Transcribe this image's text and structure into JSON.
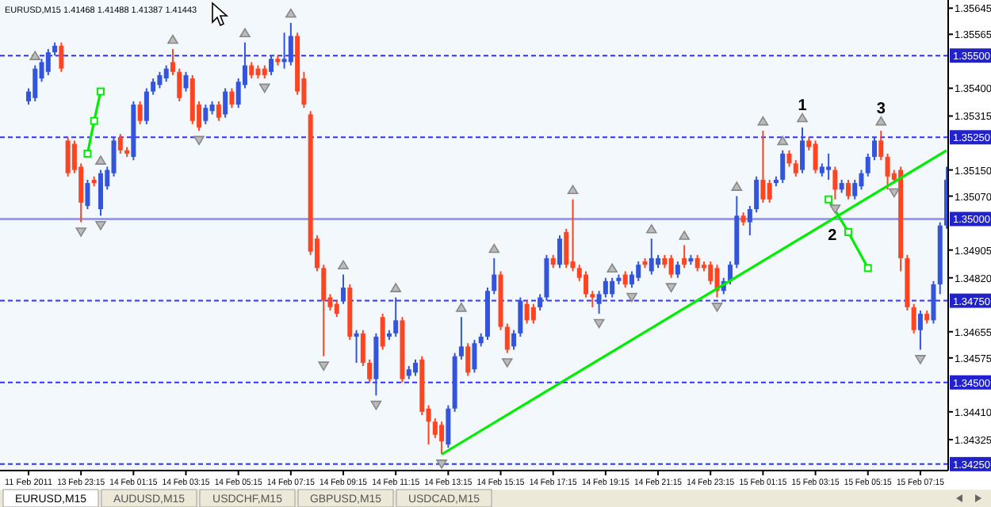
{
  "chart_data": {
    "type": "candlestick",
    "title": "EURUSD,M15 1.41468 1.41488 1.41387 1.41443",
    "categories": [
      "11 Feb 2011",
      null,
      null,
      null,
      null,
      null,
      null,
      null,
      "13 Feb 23:15",
      null,
      null,
      null,
      null,
      null,
      null,
      null,
      "14 Feb 01:15",
      null,
      null,
      null,
      null,
      null,
      null,
      null,
      "14 Feb 03:15",
      null,
      null,
      null,
      null,
      null,
      null,
      null,
      "14 Feb 05:15",
      null,
      null,
      null,
      null,
      null,
      null,
      null,
      "14 Feb 07:15",
      null,
      null,
      null,
      null,
      null,
      null,
      null,
      "14 Feb 09:15",
      null,
      null,
      null,
      null,
      null,
      null,
      null,
      "14 Feb 11:15",
      null,
      null,
      null,
      null,
      null,
      null,
      null,
      "14 Feb 13:15",
      null,
      null,
      null,
      null,
      null,
      null,
      null,
      "14 Feb 15:15",
      null,
      null,
      null,
      null,
      null,
      null,
      null,
      "14 Feb 17:15",
      null,
      null,
      null,
      null,
      null,
      null,
      null,
      "14 Feb 19:15",
      null,
      null,
      null,
      null,
      null,
      null,
      null,
      "14 Feb 21:15",
      null,
      null,
      null,
      null,
      null,
      null,
      null,
      "14 Feb 23:15",
      null,
      null,
      null,
      null,
      null,
      null,
      null,
      "15 Feb 01:15",
      null,
      null,
      null,
      null,
      null,
      null,
      null,
      "15 Feb 03:15",
      null,
      null,
      null,
      null,
      null,
      null,
      null,
      "15 Feb 05:15",
      null,
      null,
      null,
      null,
      null,
      null,
      null,
      "15 Feb 07:15",
      null,
      null,
      null,
      null
    ],
    "ohlc": [
      [
        1.3536,
        1.354,
        1.3535,
        1.3539
      ],
      [
        1.3537,
        1.3547,
        1.3536,
        1.3546
      ],
      [
        1.3543,
        1.3549,
        1.3542,
        1.3548
      ],
      [
        1.3545,
        1.3552,
        1.3544,
        1.3551
      ],
      [
        1.3551,
        1.3554,
        1.355,
        1.3553
      ],
      [
        1.3553,
        1.3554,
        1.3545,
        1.3546
      ],
      [
        1.3524,
        1.3525,
        1.3513,
        1.3514
      ],
      [
        1.3523,
        1.3524,
        1.3514,
        1.3515
      ],
      [
        1.3516,
        1.3517,
        1.3499,
        1.3505
      ],
      [
        1.3504,
        1.3512,
        1.3503,
        1.3511
      ],
      [
        1.3512,
        1.3513,
        1.351,
        1.3511
      ],
      [
        1.3503,
        1.3515,
        1.3501,
        1.3514
      ],
      [
        1.351,
        1.3516,
        1.3509,
        1.3515
      ],
      [
        1.3514,
        1.3525,
        1.3513,
        1.3524
      ],
      [
        1.3525,
        1.3526,
        1.352,
        1.3521
      ],
      [
        1.3521,
        1.3522,
        1.3519,
        1.352
      ],
      [
        1.3519,
        1.3536,
        1.3518,
        1.3535
      ],
      [
        1.3535,
        1.3536,
        1.3529,
        1.353
      ],
      [
        1.353,
        1.354,
        1.3529,
        1.3539
      ],
      [
        1.3539,
        1.3543,
        1.3538,
        1.3542
      ],
      [
        1.3541,
        1.3545,
        1.354,
        1.3544
      ],
      [
        1.3543,
        1.3547,
        1.3542,
        1.3546
      ],
      [
        1.3548,
        1.3552,
        1.3544,
        1.3545
      ],
      [
        1.3545,
        1.3546,
        1.3536,
        1.3537
      ],
      [
        1.354,
        1.3545,
        1.3539,
        1.3544
      ],
      [
        1.3543,
        1.3544,
        1.3529,
        1.353
      ],
      [
        1.3535,
        1.3536,
        1.3527,
        1.3528
      ],
      [
        1.353,
        1.3535,
        1.3529,
        1.3534
      ],
      [
        1.3533,
        1.3536,
        1.3532,
        1.3535
      ],
      [
        1.3535,
        1.3536,
        1.353,
        1.3531
      ],
      [
        1.3532,
        1.354,
        1.3531,
        1.3539
      ],
      [
        1.3539,
        1.354,
        1.3534,
        1.3535
      ],
      [
        1.3535,
        1.3543,
        1.3534,
        1.3542
      ],
      [
        1.3541,
        1.3554,
        1.354,
        1.3547
      ],
      [
        1.3547,
        1.3548,
        1.3543,
        1.3544
      ],
      [
        1.3546,
        1.3547,
        1.3543,
        1.3544
      ],
      [
        1.3546,
        1.3547,
        1.3543,
        1.3544
      ],
      [
        1.3545,
        1.355,
        1.3544,
        1.3549
      ],
      [
        1.3549,
        1.355,
        1.3547,
        1.3548
      ],
      [
        1.3548,
        1.3557,
        1.3546,
        1.3549
      ],
      [
        1.3548,
        1.356,
        1.3547,
        1.3556
      ],
      [
        1.3556,
        1.3557,
        1.3538,
        1.3539
      ],
      [
        1.3543,
        1.3545,
        1.3534,
        1.3535
      ],
      [
        1.3532,
        1.3533,
        1.3489,
        1.349
      ],
      [
        1.3494,
        1.3495,
        1.3484,
        1.3485
      ],
      [
        1.3485,
        1.3486,
        1.3458,
        1.3475
      ],
      [
        1.3476,
        1.3477,
        1.3472,
        1.3473
      ],
      [
        1.3474,
        1.3475,
        1.347,
        1.3471
      ],
      [
        1.3475,
        1.3483,
        1.3474,
        1.3479
      ],
      [
        1.3479,
        1.348,
        1.3463,
        1.3464
      ],
      [
        1.3464,
        1.3466,
        1.3456,
        1.3465
      ],
      [
        1.3465,
        1.3466,
        1.3455,
        1.3456
      ],
      [
        1.3456,
        1.3457,
        1.345,
        1.3451
      ],
      [
        1.3451,
        1.3465,
        1.3446,
        1.3464
      ],
      [
        1.347,
        1.3471,
        1.346,
        1.3461
      ],
      [
        1.3464,
        1.3466,
        1.3463,
        1.3465
      ],
      [
        1.3465,
        1.3476,
        1.3464,
        1.3469
      ],
      [
        1.3469,
        1.347,
        1.345,
        1.3451
      ],
      [
        1.3452,
        1.3455,
        1.3451,
        1.3454
      ],
      [
        1.3453,
        1.3457,
        1.3452,
        1.3456
      ],
      [
        1.3457,
        1.3458,
        1.344,
        1.3441
      ],
      [
        1.3442,
        1.3443,
        1.3431,
        1.3438
      ],
      [
        1.3438,
        1.3439,
        1.3433,
        1.3434
      ],
      [
        1.3437,
        1.3438,
        1.3428,
        1.3432
      ],
      [
        1.3431,
        1.3443,
        1.343,
        1.3442
      ],
      [
        1.3442,
        1.3459,
        1.3441,
        1.3458
      ],
      [
        1.3458,
        1.347,
        1.3457,
        1.3461
      ],
      [
        1.3461,
        1.3462,
        1.3452,
        1.3453
      ],
      [
        1.3454,
        1.3463,
        1.3453,
        1.3462
      ],
      [
        1.3462,
        1.3465,
        1.3461,
        1.3464
      ],
      [
        1.3464,
        1.3479,
        1.3463,
        1.3478
      ],
      [
        1.3478,
        1.3488,
        1.3477,
        1.3483
      ],
      [
        1.3483,
        1.3484,
        1.3466,
        1.3467
      ],
      [
        1.3467,
        1.3468,
        1.3459,
        1.346
      ],
      [
        1.3461,
        1.3466,
        1.346,
        1.3465
      ],
      [
        1.3465,
        1.3476,
        1.3464,
        1.3475
      ],
      [
        1.3474,
        1.3475,
        1.3468,
        1.3469
      ],
      [
        1.3473,
        1.3474,
        1.3468,
        1.3469
      ],
      [
        1.3473,
        1.3477,
        1.3472,
        1.3476
      ],
      [
        1.3476,
        1.3489,
        1.3475,
        1.3488
      ],
      [
        1.3488,
        1.3489,
        1.3485,
        1.3486
      ],
      [
        1.3486,
        1.3495,
        1.3485,
        1.3494
      ],
      [
        1.3496,
        1.3497,
        1.3485,
        1.3486
      ],
      [
        1.3487,
        1.3506,
        1.3484,
        1.3485
      ],
      [
        1.3485,
        1.3486,
        1.3481,
        1.3482
      ],
      [
        1.3483,
        1.3484,
        1.3476,
        1.3477
      ],
      [
        1.3477,
        1.3478,
        1.3473,
        1.3476
      ],
      [
        1.3474,
        1.3478,
        1.3471,
        1.3477
      ],
      [
        1.3477,
        1.3482,
        1.3476,
        1.3481
      ],
      [
        1.3477,
        1.3482,
        1.3476,
        1.3481
      ],
      [
        1.3481,
        1.3483,
        1.348,
        1.3482
      ],
      [
        1.3483,
        1.3484,
        1.3479,
        1.348
      ],
      [
        1.348,
        1.3484,
        1.3479,
        1.3483
      ],
      [
        1.3482,
        1.3487,
        1.3481,
        1.3486
      ],
      [
        1.3487,
        1.3488,
        1.3485,
        1.3486
      ],
      [
        1.3484,
        1.3494,
        1.3483,
        1.3488
      ],
      [
        1.3486,
        1.3489,
        1.3485,
        1.3488
      ],
      [
        1.3488,
        1.3489,
        1.3485,
        1.3486
      ],
      [
        1.3488,
        1.3489,
        1.3482,
        1.3483
      ],
      [
        1.3483,
        1.3487,
        1.3482,
        1.3486
      ],
      [
        1.3488,
        1.3492,
        1.3485,
        1.3486
      ],
      [
        1.3487,
        1.3489,
        1.3486,
        1.3488
      ],
      [
        1.3488,
        1.3489,
        1.3484,
        1.3485
      ],
      [
        1.3486,
        1.3487,
        1.3484,
        1.3485
      ],
      [
        1.3486,
        1.3487,
        1.348,
        1.3481
      ],
      [
        1.3485,
        1.3486,
        1.3476,
        1.3478
      ],
      [
        1.3478,
        1.3482,
        1.3477,
        1.3481
      ],
      [
        1.3481,
        1.3487,
        1.348,
        1.3486
      ],
      [
        1.3486,
        1.3507,
        1.3485,
        1.3501
      ],
      [
        1.3501,
        1.3502,
        1.3498,
        1.3499
      ],
      [
        1.3499,
        1.3504,
        1.3495,
        1.3503
      ],
      [
        1.3503,
        1.3513,
        1.3502,
        1.3512
      ],
      [
        1.3512,
        1.3527,
        1.3505,
        1.3506
      ],
      [
        1.3511,
        1.3512,
        1.3505,
        1.3506
      ],
      [
        1.3511,
        1.3513,
        1.351,
        1.3512
      ],
      [
        1.3512,
        1.3521,
        1.3511,
        1.352
      ],
      [
        1.352,
        1.3521,
        1.3516,
        1.3517
      ],
      [
        1.3517,
        1.3518,
        1.3513,
        1.3514
      ],
      [
        1.3515,
        1.3528,
        1.3514,
        1.3524
      ],
      [
        1.3524,
        1.3525,
        1.3521,
        1.3522
      ],
      [
        1.3523,
        1.3524,
        1.3514,
        1.3515
      ],
      [
        1.3514,
        1.3517,
        1.3513,
        1.3516
      ],
      [
        1.3515,
        1.352,
        1.3512,
        1.3516
      ],
      [
        1.3515,
        1.3516,
        1.3506,
        1.3509
      ],
      [
        1.3509,
        1.3512,
        1.3508,
        1.3511
      ],
      [
        1.3511,
        1.3512,
        1.3506,
        1.3507
      ],
      [
        1.3507,
        1.3512,
        1.3506,
        1.3511
      ],
      [
        1.351,
        1.3515,
        1.3509,
        1.3514
      ],
      [
        1.3514,
        1.352,
        1.3513,
        1.3519
      ],
      [
        1.3519,
        1.3525,
        1.3518,
        1.3524
      ],
      [
        1.3524,
        1.3527,
        1.3518,
        1.3519
      ],
      [
        1.3519,
        1.352,
        1.3509,
        1.3513
      ],
      [
        1.3514,
        1.3515,
        1.3511,
        1.3512
      ],
      [
        1.3515,
        1.3516,
        1.3484,
        1.3488
      ],
      [
        1.3488,
        1.3489,
        1.3472,
        1.3473
      ],
      [
        1.3473,
        1.3474,
        1.3465,
        1.3466
      ],
      [
        1.3466,
        1.3472,
        1.346,
        1.3471
      ],
      [
        1.3471,
        1.3472,
        1.3468,
        1.3469
      ],
      [
        1.3469,
        1.3481,
        1.3468,
        1.348
      ],
      [
        1.348,
        1.3499,
        1.3477,
        1.3498
      ],
      [
        1.3498,
        1.3516,
        1.3497,
        1.3512
      ]
    ],
    "colors": [
      "#3355dd",
      "#3355dd",
      "#3355dd",
      "#3355dd",
      "#3355dd",
      "#ff4422",
      "#ff4422",
      "#ff4422",
      "#ff4422",
      "#3355dd",
      "#ff4422",
      "#3355dd",
      "#3355dd",
      "#3355dd",
      "#ff4422",
      "#ff4422",
      "#3355dd",
      "#ff4422",
      "#3355dd",
      "#3355dd",
      "#3355dd",
      "#3355dd",
      "#ff4422",
      "#ff4422",
      "#3355dd",
      "#ff4422",
      "#ff4422",
      "#3355dd",
      "#3355dd",
      "#ff4422",
      "#3355dd",
      "#ff4422",
      "#3355dd",
      "#3355dd",
      "#ff4422",
      "#ff4422",
      "#ff4422",
      "#3355dd",
      "#ff4422",
      "#3355dd",
      "#3355dd",
      "#ff4422",
      "#ff4422",
      "#ff4422",
      "#ff4422",
      "#ff4422",
      "#ff4422",
      "#ff4422",
      "#3355dd",
      "#ff4422",
      "#3355dd",
      "#ff4422",
      "#ff4422",
      "#3355dd",
      "#ff4422",
      "#3355dd",
      "#3355dd",
      "#ff4422",
      "#3355dd",
      "#3355dd",
      "#ff4422",
      "#ff4422",
      "#ff4422",
      "#ff4422",
      "#3355dd",
      "#3355dd",
      "#3355dd",
      "#ff4422",
      "#3355dd",
      "#3355dd",
      "#3355dd",
      "#3355dd",
      "#ff4422",
      "#ff4422",
      "#3355dd",
      "#3355dd",
      "#ff4422",
      "#ff4422",
      "#3355dd",
      "#3355dd",
      "#ff4422",
      "#3355dd",
      "#ff4422",
      "#ff4422",
      "#ff4422",
      "#ff4422",
      "#ff4422",
      "#3355dd",
      "#3355dd",
      "#3355dd",
      "#3355dd",
      "#ff4422",
      "#3355dd",
      "#3355dd",
      "#ff4422",
      "#3355dd",
      "#3355dd",
      "#ff4422",
      "#ff4422",
      "#3355dd",
      "#ff4422",
      "#3355dd",
      "#ff4422",
      "#ff4422",
      "#ff4422",
      "#ff4422",
      "#3355dd",
      "#3355dd",
      "#3355dd",
      "#ff4422",
      "#3355dd",
      "#3355dd",
      "#ff4422",
      "#ff4422",
      "#3355dd",
      "#3355dd",
      "#ff4422",
      "#ff4422",
      "#3355dd",
      "#ff4422",
      "#ff4422",
      "#3355dd",
      "#3355dd",
      "#ff4422",
      "#3355dd",
      "#ff4422",
      "#3355dd",
      "#3355dd",
      "#3355dd",
      "#3355dd",
      "#ff4422",
      "#ff4422",
      "#ff4422",
      "#ff4422",
      "#ff4422",
      "#ff4422",
      "#3355dd",
      "#ff4422",
      "#3355dd",
      "#3355dd",
      "#3355dd"
    ],
    "value_labels": [
      null,
      null,
      null,
      null,
      null,
      null,
      null,
      null,
      null,
      null,
      null,
      null,
      null,
      null,
      null,
      null,
      null,
      null,
      null,
      null,
      null,
      null,
      null,
      null,
      null,
      null,
      null,
      null,
      null,
      null,
      null,
      null,
      null,
      null,
      null,
      null,
      null,
      null,
      null,
      null,
      null,
      null,
      null,
      null,
      null,
      null,
      null,
      null,
      null,
      null,
      null,
      null,
      null,
      null,
      null,
      null,
      null,
      null,
      null,
      null,
      null,
      null,
      null,
      null,
      null,
      null,
      null,
      null,
      null,
      null,
      null,
      null,
      null,
      null,
      null,
      null,
      null,
      null,
      null,
      null,
      null,
      null,
      null,
      null,
      null,
      null,
      null,
      null,
      null,
      null,
      null,
      null,
      null,
      null,
      null,
      null,
      null,
      null,
      null,
      null,
      null,
      null,
      null,
      null,
      null,
      null,
      null,
      null,
      null,
      null,
      null,
      null,
      null,
      null,
      null,
      null,
      null,
      null,
      "1",
      null,
      null,
      null,
      null,
      null,
      null,
      null,
      null,
      null,
      null,
      null,
      "3",
      null,
      null,
      null,
      null,
      null,
      null,
      null,
      null,
      null,
      null
    ],
    "ylim": [
      1.3424,
      1.3567
    ],
    "yticks": [
      {
        "value": 1.35645,
        "label": "1.35645"
      },
      {
        "value": 1.35565,
        "label": "1.35565"
      },
      {
        "value": 1.354,
        "label": "1.35400"
      },
      {
        "value": 1.35315,
        "label": "1.35315"
      },
      {
        "value": 1.3515,
        "label": "1.35150"
      },
      {
        "value": 1.3507,
        "label": "1.35070"
      },
      {
        "value": 1.34905,
        "label": "1.34905"
      },
      {
        "value": 1.3482,
        "label": "1.34820"
      },
      {
        "value": 1.34655,
        "label": "1.34655"
      },
      {
        "value": 1.34575,
        "label": "1.34575"
      },
      {
        "value": 1.3441,
        "label": "1.34410"
      },
      {
        "value": 1.34325,
        "label": "1.34325"
      }
    ],
    "ref_lines": [
      {
        "axis": "y",
        "value": 1.355,
        "label": "1.35500",
        "color": "#3333ff",
        "line_style": "dashed"
      },
      {
        "axis": "y",
        "value": 1.3525,
        "label": "1.35250",
        "color": "#3333ff",
        "line_style": "dashed"
      },
      {
        "axis": "y",
        "value": 1.35,
        "label": "1.35000",
        "color": "#9999ff",
        "line_style": "solid"
      },
      {
        "axis": "y",
        "value": 1.3475,
        "label": "1.34750",
        "color": "#3333ff",
        "line_style": "dashed"
      },
      {
        "axis": "y",
        "value": 1.345,
        "label": "1.34500",
        "color": "#3333ff",
        "line_style": "dashed"
      },
      {
        "axis": "y",
        "value": 1.3425,
        "label": "1.34250",
        "color": "#3333ff",
        "line_style": "dashed"
      }
    ],
    "series": [
      {
        "type": "line",
        "color": "#00ee00",
        "marker": "none",
        "values": [
          null,
          null,
          null,
          null,
          null,
          null,
          null,
          null,
          null,
          null,
          null,
          null,
          null,
          null,
          null,
          null,
          null,
          null,
          null,
          null,
          null,
          null,
          null,
          null,
          null,
          null,
          null,
          null,
          null,
          null,
          null,
          null,
          null,
          null,
          null,
          null,
          null,
          null,
          null,
          null,
          null,
          null,
          null,
          null,
          null,
          null,
          null,
          null,
          null,
          null,
          null,
          null,
          null,
          null,
          null,
          null,
          null,
          null,
          null,
          null,
          null,
          null,
          null,
          1.3428,
          null,
          null,
          null,
          null,
          null,
          null,
          null,
          null,
          null,
          null,
          null,
          null,
          null,
          null,
          null,
          null,
          null,
          null,
          null,
          null,
          null,
          null,
          null,
          null,
          null,
          null,
          null,
          null,
          null,
          null,
          null,
          null,
          null,
          null,
          null,
          null,
          null,
          null,
          null,
          null,
          null,
          null,
          null,
          null,
          null,
          null,
          null,
          null,
          null,
          null,
          null,
          null,
          null,
          null,
          null,
          null,
          null,
          null,
          null,
          null,
          null,
          null,
          null,
          null,
          null,
          null,
          null,
          null,
          null,
          null,
          null,
          null,
          null,
          null,
          null,
          null,
          1.3521
        ]
      },
      {
        "type": "line",
        "color": "#00ee00",
        "marker": "square",
        "values": [
          null,
          null,
          null,
          null,
          null,
          null,
          null,
          null,
          null,
          1.352,
          1.353,
          1.3539,
          null,
          null,
          null,
          null,
          null,
          null,
          null,
          null,
          null,
          null,
          null,
          null,
          null,
          null,
          null,
          null,
          null,
          null,
          null,
          null,
          null,
          null,
          null,
          null,
          null,
          null,
          null,
          null,
          null,
          null,
          null,
          null,
          null,
          null,
          null,
          null,
          null,
          null,
          null,
          null,
          null,
          null,
          null,
          null,
          null,
          null,
          null,
          null,
          null,
          null,
          null,
          null,
          null,
          null,
          null,
          null,
          null,
          null,
          null,
          null,
          null,
          null,
          null,
          null,
          null,
          null,
          null,
          null,
          null,
          null,
          null,
          null,
          null,
          null,
          null,
          null,
          null,
          null,
          null,
          null,
          null,
          null,
          null,
          null,
          null,
          null,
          null,
          null,
          null,
          null,
          null,
          null,
          null,
          null,
          null,
          null,
          null,
          null,
          null,
          null,
          null,
          null,
          null,
          null,
          null,
          null,
          null,
          null,
          null,
          null,
          null,
          null,
          null,
          null,
          null,
          null,
          null,
          null,
          null,
          null,
          null,
          null,
          null,
          null,
          null,
          null,
          null,
          null,
          null
        ]
      },
      {
        "type": "line",
        "color": "#00ee00",
        "marker": "square",
        "values": [
          null,
          null,
          null,
          null,
          null,
          null,
          null,
          null,
          null,
          null,
          null,
          null,
          null,
          null,
          null,
          null,
          null,
          null,
          null,
          null,
          null,
          null,
          null,
          null,
          null,
          null,
          null,
          null,
          null,
          null,
          null,
          null,
          null,
          null,
          null,
          null,
          null,
          null,
          null,
          null,
          null,
          null,
          null,
          null,
          null,
          null,
          null,
          null,
          null,
          null,
          null,
          null,
          null,
          null,
          null,
          null,
          null,
          null,
          null,
          null,
          null,
          null,
          null,
          null,
          null,
          null,
          null,
          null,
          null,
          null,
          null,
          null,
          null,
          null,
          null,
          null,
          null,
          null,
          null,
          null,
          null,
          null,
          null,
          null,
          null,
          null,
          null,
          null,
          null,
          null,
          null,
          null,
          null,
          null,
          null,
          null,
          null,
          null,
          null,
          null,
          null,
          null,
          null,
          null,
          null,
          null,
          null,
          null,
          null,
          null,
          null,
          null,
          null,
          null,
          null,
          null,
          null,
          null,
          null,
          null,
          null,
          null,
          1.3506,
          null,
          null,
          1.3496,
          null,
          null,
          1.3485,
          null,
          null,
          null,
          null,
          null,
          null,
          null,
          null,
          null,
          null,
          null,
          null
        ]
      },
      {
        "type": "scatter",
        "color": "#888888",
        "marker": "triangle",
        "values": [
          null,
          1.355,
          null,
          null,
          null,
          null,
          null,
          null,
          null,
          null,
          null,
          1.3518,
          null,
          null,
          null,
          null,
          null,
          null,
          null,
          null,
          null,
          null,
          1.3555,
          null,
          null,
          null,
          null,
          null,
          null,
          null,
          null,
          null,
          null,
          1.3557,
          null,
          null,
          null,
          null,
          null,
          null,
          1.3563,
          null,
          null,
          null,
          null,
          null,
          null,
          null,
          1.3486,
          null,
          null,
          null,
          null,
          null,
          null,
          null,
          1.3479,
          null,
          null,
          null,
          null,
          null,
          null,
          null,
          null,
          null,
          1.3473,
          null,
          null,
          null,
          null,
          1.3491,
          null,
          null,
          null,
          null,
          null,
          null,
          null,
          null,
          null,
          null,
          null,
          1.3509,
          null,
          null,
          null,
          null,
          null,
          1.3485,
          null,
          null,
          null,
          null,
          null,
          1.3497,
          null,
          null,
          null,
          null,
          1.3495,
          null,
          null,
          null,
          null,
          null,
          null,
          null,
          1.351,
          null,
          null,
          null,
          1.353,
          null,
          null,
          1.3524,
          null,
          null,
          1.3531,
          null,
          null,
          null,
          null,
          null,
          null,
          null,
          null,
          null,
          null,
          null,
          1.353,
          null,
          null,
          null,
          null,
          null,
          null,
          null,
          null,
          null,
          null
        ]
      },
      {
        "type": "scatter",
        "color": "#888888",
        "marker": "triangle",
        "values": [
          null,
          null,
          null,
          null,
          null,
          null,
          null,
          null,
          1.3496,
          null,
          null,
          1.3498,
          null,
          null,
          null,
          null,
          null,
          null,
          null,
          null,
          null,
          null,
          null,
          null,
          null,
          null,
          1.3524,
          null,
          null,
          null,
          null,
          null,
          null,
          null,
          null,
          null,
          1.354,
          null,
          null,
          null,
          null,
          null,
          null,
          null,
          null,
          1.3455,
          null,
          null,
          null,
          null,
          null,
          null,
          null,
          1.3443,
          null,
          null,
          null,
          null,
          null,
          null,
          null,
          null,
          null,
          1.3425,
          null,
          null,
          null,
          null,
          null,
          null,
          null,
          null,
          null,
          1.3456,
          null,
          null,
          null,
          null,
          null,
          null,
          null,
          null,
          null,
          null,
          null,
          null,
          null,
          1.3468,
          null,
          null,
          null,
          null,
          1.3476,
          null,
          null,
          null,
          null,
          null,
          1.3479,
          null,
          null,
          null,
          null,
          null,
          null,
          1.3473,
          null,
          null,
          null,
          null,
          null,
          null,
          null,
          null,
          null,
          null,
          null,
          null,
          null,
          null,
          null,
          null,
          null,
          1.3503,
          null,
          null,
          null,
          null,
          null,
          null,
          null,
          null,
          1.3508,
          null,
          null,
          null,
          1.3457,
          null,
          null,
          null,
          null
        ]
      }
    ],
    "annotations": [
      "EURUSD,M15",
      "AUDUSD,M15",
      "USDCHF,M15",
      "GBPUSD,M15",
      "USDCAD,M15",
      "2"
    ]
  }
}
